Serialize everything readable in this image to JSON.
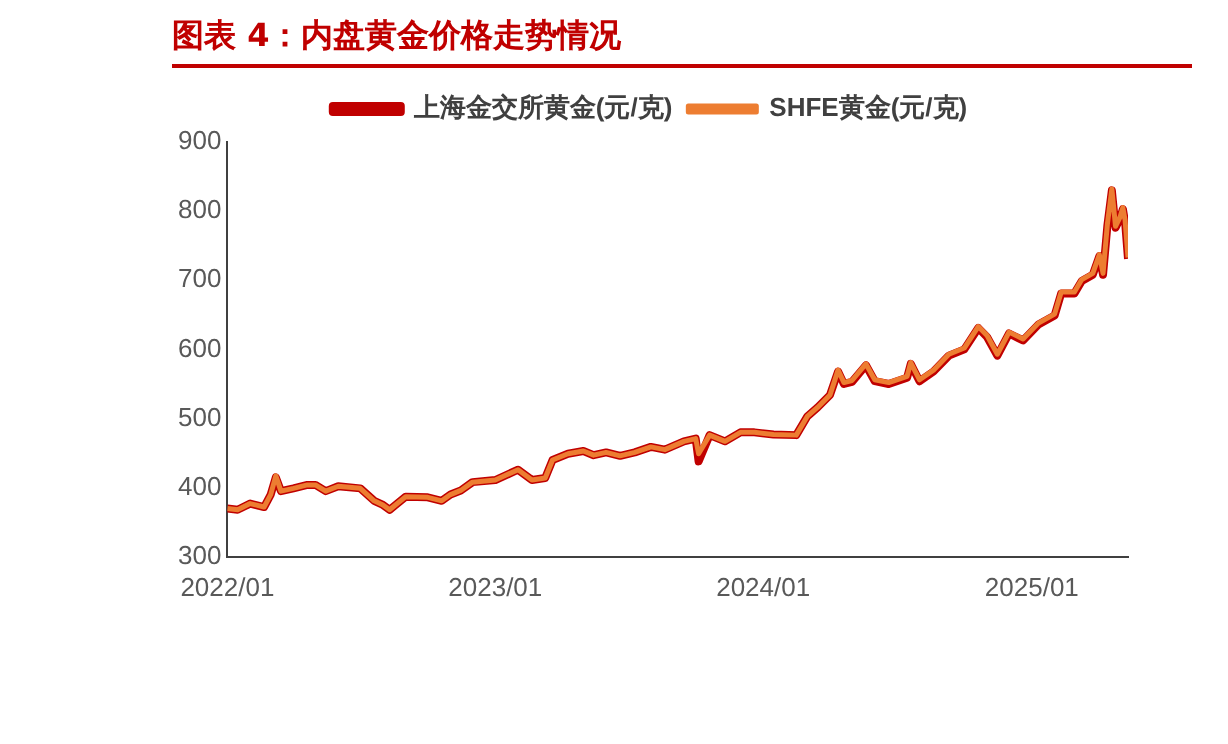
{
  "chart_data": {
    "type": "line",
    "title": "图表 4：内盘黄金价格走势情况",
    "x": [
      "2022-01-01",
      "2022-01-15",
      "2022-02-01",
      "2022-02-20",
      "2022-03-01",
      "2022-03-08",
      "2022-03-15",
      "2022-04-01",
      "2022-04-20",
      "2022-05-01",
      "2022-05-15",
      "2022-06-01",
      "2022-07-01",
      "2022-07-20",
      "2022-08-01",
      "2022-08-10",
      "2022-09-01",
      "2022-10-01",
      "2022-10-20",
      "2022-11-01",
      "2022-11-15",
      "2022-12-01",
      "2023-01-01",
      "2023-02-01",
      "2023-02-20",
      "2023-03-10",
      "2023-03-20",
      "2023-04-10",
      "2023-05-01",
      "2023-05-15",
      "2023-06-01",
      "2023-06-20",
      "2023-07-10",
      "2023-08-01",
      "2023-08-20",
      "2023-09-15",
      "2023-10-01",
      "2023-10-05",
      "2023-10-20",
      "2023-11-10",
      "2023-12-01",
      "2023-12-20",
      "2024-01-15",
      "2024-02-15",
      "2024-03-01",
      "2024-03-15",
      "2024-04-01",
      "2024-04-12",
      "2024-04-20",
      "2024-05-01",
      "2024-05-20",
      "2024-06-01",
      "2024-06-20",
      "2024-07-15",
      "2024-07-20",
      "2024-08-01",
      "2024-08-20",
      "2024-09-10",
      "2024-10-01",
      "2024-10-20",
      "2024-11-01",
      "2024-11-15",
      "2024-12-01",
      "2024-12-20",
      "2025-01-10",
      "2025-02-01",
      "2025-02-10",
      "2025-02-28",
      "2025-03-10",
      "2025-03-25",
      "2025-04-03",
      "2025-04-08",
      "2025-04-14",
      "2025-04-20",
      "2025-04-25",
      "2025-05-01",
      "2025-05-05",
      "2025-05-08",
      "2025-05-12"
    ],
    "series": [
      {
        "name": "上海金交所黄金(元/克)",
        "color": "#c00000",
        "values": [
          370,
          368,
          377,
          372,
          390,
          415,
          395,
          399,
          404,
          404,
          395,
          402,
          399,
          381,
          375,
          368,
          387,
          386,
          381,
          390,
          396,
          408,
          411,
          426,
          411,
          414,
          440,
          449,
          453,
          447,
          451,
          446,
          451,
          459,
          455,
          467,
          471,
          438,
          476,
          467,
          480,
          480,
          477,
          476,
          503,
          516,
          534,
          568,
          550,
          553,
          577,
          554,
          550,
          559,
          579,
          554,
          568,
          591,
          600,
          631,
          618,
          591,
          623,
          613,
          636,
          649,
          681,
          681,
          699,
          708,
          735,
          708,
          780,
          830,
          776,
          789,
          803,
          785,
          731
        ]
      },
      {
        "name": "SHFE黄金(元/克)",
        "color": "#ed7d31",
        "values": [
          370,
          368,
          377,
          372,
          390,
          417,
          395,
          399,
          404,
          404,
          395,
          402,
          399,
          381,
          375,
          368,
          387,
          386,
          381,
          390,
          396,
          408,
          411,
          426,
          411,
          414,
          440,
          449,
          453,
          447,
          451,
          446,
          451,
          459,
          455,
          467,
          471,
          449,
          476,
          467,
          480,
          480,
          477,
          476,
          503,
          516,
          534,
          570,
          552,
          555,
          579,
          556,
          552,
          561,
          581,
          556,
          570,
          593,
          602,
          633,
          620,
          593,
          625,
          615,
          638,
          651,
          683,
          683,
          701,
          710,
          737,
          710,
          782,
          832,
          778,
          791,
          805,
          787,
          733
        ]
      }
    ],
    "xlim": [
      "2022-01-01",
      "2025-05-12"
    ],
    "xticks": [
      {
        "value": "2022-01-01",
        "label": "2022/01"
      },
      {
        "value": "2023-01-01",
        "label": "2023/01"
      },
      {
        "value": "2024-01-01",
        "label": "2024/01"
      },
      {
        "value": "2025-01-01",
        "label": "2025/01"
      }
    ],
    "ylim": [
      300,
      900
    ],
    "yticks": [
      300,
      400,
      500,
      600,
      700,
      800,
      900
    ],
    "grid": false,
    "legend": "top",
    "marker": "none",
    "line_style": "solid"
  }
}
